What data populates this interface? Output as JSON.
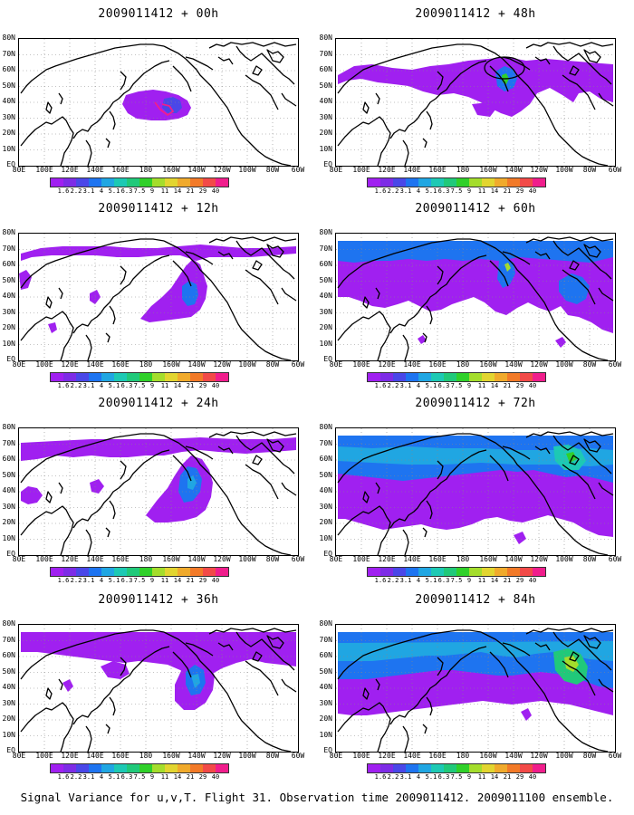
{
  "caption": "Signal Variance for u,v,T. Flight 31. Observation time 2009011412. 2009011100 ensemble.",
  "lat_labels": [
    "80N",
    "70N",
    "60N",
    "50N",
    "40N",
    "30N",
    "20N",
    "10N",
    "EQ"
  ],
  "lon_labels": [
    "80E",
    "100E",
    "120E",
    "140E",
    "160E",
    "180",
    "160W",
    "140W",
    "120W",
    "100W",
    "80W",
    "60W"
  ],
  "colorbar": {
    "colors": [
      "#a020f0",
      "#7d2ce6",
      "#4a47e8",
      "#1e74f0",
      "#20a6e2",
      "#1dc9b4",
      "#20c97a",
      "#30d02a",
      "#a4dd2c",
      "#e2d530",
      "#f0aa2c",
      "#f27a28",
      "#f24a48",
      "#f01e8c"
    ],
    "labels": [
      "1.6",
      "2.2",
      "3.1",
      "4",
      "5.1",
      "6.3",
      "7.5",
      "9",
      "11",
      "14",
      "21",
      "29",
      "40"
    ]
  },
  "panels": [
    {
      "title": "2009011412 + 00h"
    },
    {
      "title": "2009011412 + 48h"
    },
    {
      "title": "2009011412 + 12h"
    },
    {
      "title": "2009011412 + 60h"
    },
    {
      "title": "2009011412 + 24h"
    },
    {
      "title": "2009011412 + 72h"
    },
    {
      "title": "2009011412 + 36h"
    },
    {
      "title": "2009011412 + 84h"
    }
  ]
}
